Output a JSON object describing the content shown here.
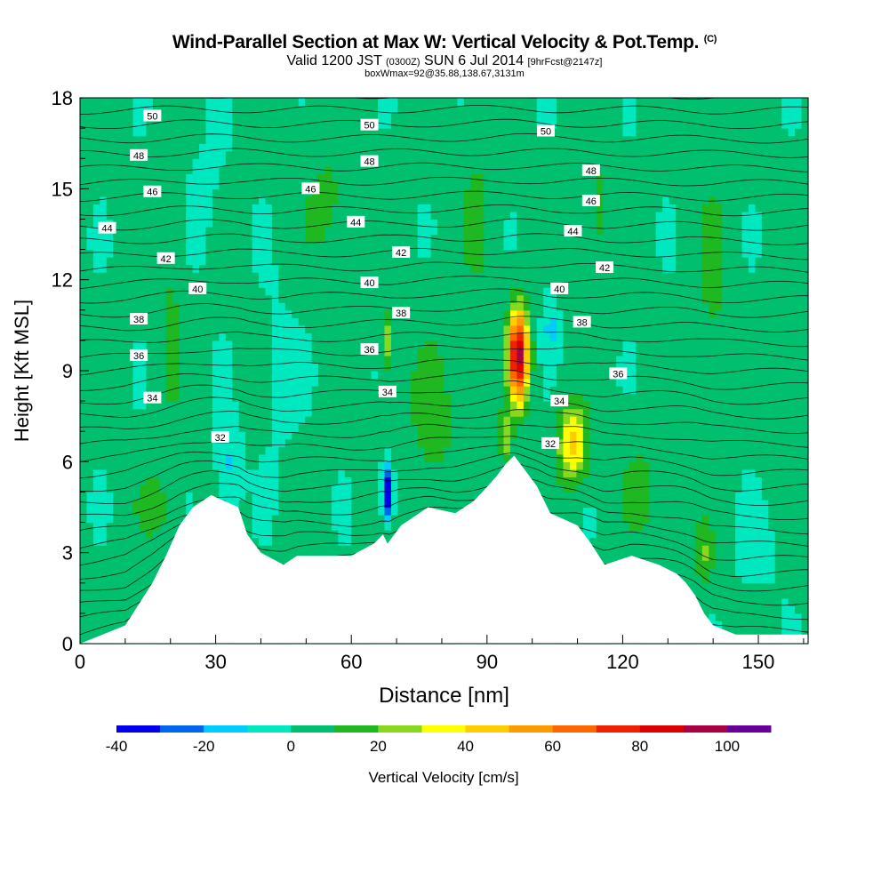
{
  "chart_data": {
    "type": "heatmap",
    "title": "Wind-Parallel Section at Max W: Vertical Velocity & Pot.Temp.",
    "title_mark": "(C)",
    "subtitle_valid": "Valid 1200 JST",
    "subtitle_utc": "(0300Z)",
    "subtitle_date": "SUN 6 Jul 2014",
    "subtitle_forecast": "[9hrFcst@2147z]",
    "box_info": "boxWmax=92@35.88,138.67,3131m",
    "xlabel": "Distance [nm]",
    "ylabel": "Height [Kft MSL]",
    "xlim": [
      0,
      161
    ],
    "ylim": [
      0,
      18
    ],
    "x_ticks": [
      0,
      30,
      60,
      90,
      120,
      150
    ],
    "y_ticks": [
      0,
      3,
      6,
      9,
      12,
      15,
      18
    ],
    "colorbar": {
      "label": "Vertical Velocity [cm/s]",
      "range": [
        -40,
        110
      ],
      "bin_width": 10,
      "tick_values": [
        -40,
        -20,
        0,
        20,
        40,
        60,
        80,
        100
      ],
      "colors": [
        "#0000ee",
        "#0066ee",
        "#00ccff",
        "#00e8c0",
        "#00c070",
        "#20b820",
        "#88d820",
        "#ffff00",
        "#ffcc00",
        "#ff9900",
        "#ff6600",
        "#ee2200",
        "#dd0000",
        "#aa0044",
        "#660099"
      ]
    },
    "terrain": [
      [
        0,
        0
      ],
      [
        10,
        0.6
      ],
      [
        13,
        1.3
      ],
      [
        16,
        2.0
      ],
      [
        19,
        2.9
      ],
      [
        22,
        3.9
      ],
      [
        25,
        4.5
      ],
      [
        29,
        4.9
      ],
      [
        35,
        4.5
      ],
      [
        37,
        3.6
      ],
      [
        40,
        3.0
      ],
      [
        45,
        2.6
      ],
      [
        48,
        2.9
      ],
      [
        60,
        2.9
      ],
      [
        65,
        3.3
      ],
      [
        67,
        3.6
      ],
      [
        68,
        3.3
      ],
      [
        71,
        3.9
      ],
      [
        74,
        4.2
      ],
      [
        77,
        4.5
      ],
      [
        83,
        4.3
      ],
      [
        87,
        4.7
      ],
      [
        89,
        5.0
      ],
      [
        92,
        5.5
      ],
      [
        94,
        5.9
      ],
      [
        96,
        6.2
      ],
      [
        101,
        5.2
      ],
      [
        104,
        4.3
      ],
      [
        110,
        3.9
      ],
      [
        113,
        3.3
      ],
      [
        116,
        2.6
      ],
      [
        122,
        2.9
      ],
      [
        128,
        2.6
      ],
      [
        132,
        2.3
      ],
      [
        134,
        2.0
      ],
      [
        136,
        1.6
      ],
      [
        138,
        1.0
      ],
      [
        140,
        0.6
      ],
      [
        145,
        0.3
      ],
      [
        150,
        0.3
      ],
      [
        161,
        0.3
      ]
    ],
    "theta_labels": [
      {
        "text": "50",
        "x": 16,
        "y": 17.4
      },
      {
        "text": "50",
        "x": 64,
        "y": 17.1
      },
      {
        "text": "50",
        "x": 103,
        "y": 16.9
      },
      {
        "text": "48",
        "x": 13,
        "y": 16.1
      },
      {
        "text": "48",
        "x": 64,
        "y": 15.9
      },
      {
        "text": "48",
        "x": 113,
        "y": 15.6
      },
      {
        "text": "46",
        "x": 16,
        "y": 14.9
      },
      {
        "text": "46",
        "x": 51,
        "y": 15.0
      },
      {
        "text": "46",
        "x": 113,
        "y": 14.6
      },
      {
        "text": "44",
        "x": 6,
        "y": 13.7
      },
      {
        "text": "44",
        "x": 61,
        "y": 13.9
      },
      {
        "text": "44",
        "x": 109,
        "y": 13.6
      },
      {
        "text": "42",
        "x": 19,
        "y": 12.7
      },
      {
        "text": "42",
        "x": 71,
        "y": 12.9
      },
      {
        "text": "42",
        "x": 116,
        "y": 12.4
      },
      {
        "text": "40",
        "x": 26,
        "y": 11.7
      },
      {
        "text": "40",
        "x": 64,
        "y": 11.9
      },
      {
        "text": "40",
        "x": 106,
        "y": 11.7
      },
      {
        "text": "38",
        "x": 13,
        "y": 10.7
      },
      {
        "text": "38",
        "x": 71,
        "y": 10.9
      },
      {
        "text": "38",
        "x": 111,
        "y": 10.6
      },
      {
        "text": "36",
        "x": 13,
        "y": 9.5
      },
      {
        "text": "36",
        "x": 64,
        "y": 9.7
      },
      {
        "text": "36",
        "x": 119,
        "y": 8.9
      },
      {
        "text": "34",
        "x": 16,
        "y": 8.1
      },
      {
        "text": "34",
        "x": 68,
        "y": 8.3
      },
      {
        "text": "34",
        "x": 106,
        "y": 8.0
      },
      {
        "text": "32",
        "x": 31,
        "y": 6.8
      },
      {
        "text": "32",
        "x": 104,
        "y": 6.6
      }
    ],
    "w_features": [
      {
        "x": 97,
        "y": 9.5,
        "sx": 2.2,
        "sy": 1.5,
        "w": 92
      },
      {
        "x": 109,
        "y": 6.6,
        "sx": 3.2,
        "sy": 1.3,
        "w": 42
      },
      {
        "x": 68,
        "y": 5.0,
        "sx": 1.2,
        "sy": 0.9,
        "w": -42
      },
      {
        "x": 33,
        "y": 5.9,
        "sx": 2.6,
        "sy": 1.3,
        "w": -14
      },
      {
        "x": 68,
        "y": 10.0,
        "sx": 1.3,
        "sy": 0.9,
        "w": 28
      },
      {
        "x": 94,
        "y": 6.8,
        "sx": 1.5,
        "sy": 0.8,
        "w": 28
      },
      {
        "x": 104,
        "y": 10.5,
        "sx": 1.6,
        "sy": 1.0,
        "w": -14
      },
      {
        "x": 16,
        "y": 4.5,
        "sx": 4.0,
        "sy": 1.2,
        "w": 12
      },
      {
        "x": 78,
        "y": 7.5,
        "sx": 6.0,
        "sy": 3.0,
        "w": 12
      },
      {
        "x": 124,
        "y": 5.0,
        "sx": 5.0,
        "sy": 2.0,
        "w": 10
      },
      {
        "x": 138,
        "y": 3.0,
        "sx": 2.0,
        "sy": 1.2,
        "w": 18
      },
      {
        "x": 55,
        "y": 14.5,
        "sx": 7.0,
        "sy": 2.5,
        "w": 10
      },
      {
        "x": 20,
        "y": 10.5,
        "sx": 3.0,
        "sy": 4.0,
        "w": 10
      },
      {
        "x": 115,
        "y": 14.0,
        "sx": 3.0,
        "sy": 3.5,
        "w": 10
      },
      {
        "x": 140,
        "y": 12.0,
        "sx": 4.0,
        "sy": 4.0,
        "w": 10
      },
      {
        "x": 157,
        "y": 8.5,
        "sx": 2.5,
        "sy": 3.0,
        "w": 10
      },
      {
        "x": 88,
        "y": 14.0,
        "sx": 4.0,
        "sy": 3.0,
        "w": 10
      },
      {
        "x": 44,
        "y": 9.0,
        "sx": 5.0,
        "sy": 3.0,
        "w": -4
      },
      {
        "x": 150,
        "y": 3.0,
        "sx": 6.0,
        "sy": 1.5,
        "w": -4
      },
      {
        "x": 28,
        "y": 14.5,
        "sx": 5.0,
        "sy": 2.5,
        "w": -4
      }
    ]
  }
}
